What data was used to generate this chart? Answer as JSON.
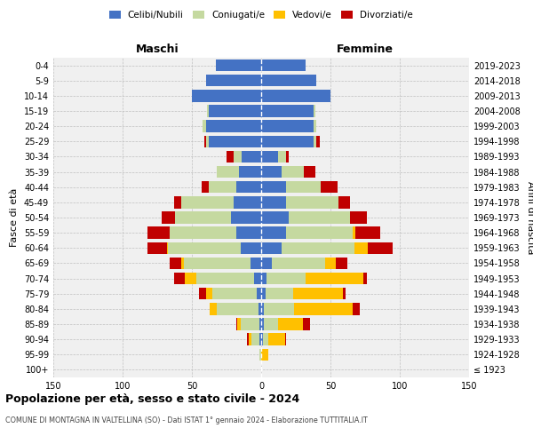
{
  "age_groups": [
    "100+",
    "95-99",
    "90-94",
    "85-89",
    "80-84",
    "75-79",
    "70-74",
    "65-69",
    "60-64",
    "55-59",
    "50-54",
    "45-49",
    "40-44",
    "35-39",
    "30-34",
    "25-29",
    "20-24",
    "15-19",
    "10-14",
    "5-9",
    "0-4"
  ],
  "birth_years": [
    "≤ 1923",
    "1924-1928",
    "1929-1933",
    "1934-1938",
    "1939-1943",
    "1944-1948",
    "1949-1953",
    "1954-1958",
    "1959-1963",
    "1964-1968",
    "1969-1973",
    "1974-1978",
    "1979-1983",
    "1984-1988",
    "1989-1993",
    "1994-1998",
    "1999-2003",
    "2004-2008",
    "2009-2013",
    "2014-2018",
    "2019-2023"
  ],
  "colors": {
    "celibi": "#4472c4",
    "coniugati": "#c5d9a0",
    "vedovi": "#ffc000",
    "divorziati": "#c00000"
  },
  "male_celibi": [
    0,
    0,
    1,
    1,
    2,
    3,
    5,
    8,
    15,
    18,
    22,
    20,
    18,
    16,
    14,
    38,
    40,
    38,
    50,
    40,
    33
  ],
  "male_coniugati": [
    0,
    1,
    6,
    14,
    30,
    32,
    42,
    48,
    52,
    48,
    40,
    38,
    20,
    16,
    6,
    2,
    2,
    1,
    0,
    0,
    0
  ],
  "male_vedovi": [
    0,
    0,
    2,
    2,
    5,
    5,
    8,
    2,
    1,
    0,
    0,
    0,
    0,
    0,
    0,
    0,
    0,
    0,
    0,
    0,
    0
  ],
  "male_divorziati": [
    0,
    0,
    1,
    1,
    0,
    5,
    8,
    8,
    14,
    16,
    10,
    5,
    5,
    0,
    5,
    1,
    0,
    0,
    0,
    0,
    0
  ],
  "female_nubili": [
    0,
    0,
    1,
    2,
    2,
    3,
    4,
    8,
    15,
    18,
    20,
    18,
    18,
    15,
    12,
    38,
    38,
    38,
    50,
    40,
    32
  ],
  "female_coniugate": [
    0,
    0,
    4,
    10,
    22,
    20,
    28,
    38,
    52,
    48,
    44,
    38,
    25,
    16,
    6,
    2,
    2,
    1,
    0,
    0,
    0
  ],
  "female_vedove": [
    0,
    5,
    12,
    18,
    42,
    36,
    42,
    8,
    10,
    2,
    0,
    0,
    0,
    0,
    0,
    0,
    0,
    0,
    0,
    0,
    0
  ],
  "female_divorziate": [
    0,
    0,
    1,
    5,
    5,
    2,
    2,
    8,
    18,
    18,
    12,
    8,
    12,
    8,
    2,
    2,
    0,
    0,
    0,
    0,
    0
  ],
  "xlim": 150,
  "title": "Popolazione per età, sesso e stato civile - 2024",
  "subtitle": "COMUNE DI MONTAGNA IN VALTELLINA (SO) - Dati ISTAT 1° gennaio 2024 - Elaborazione TUTTITALIA.IT",
  "ylabel": "Fasce di età",
  "ylabel_right": "Anni di nascita",
  "legend_labels": [
    "Celibi/Nubili",
    "Coniugati/e",
    "Vedovi/e",
    "Divorziati/e"
  ],
  "bg_color": "#f0f0f0",
  "header_maschi": "Maschi",
  "header_femmine": "Femmine"
}
